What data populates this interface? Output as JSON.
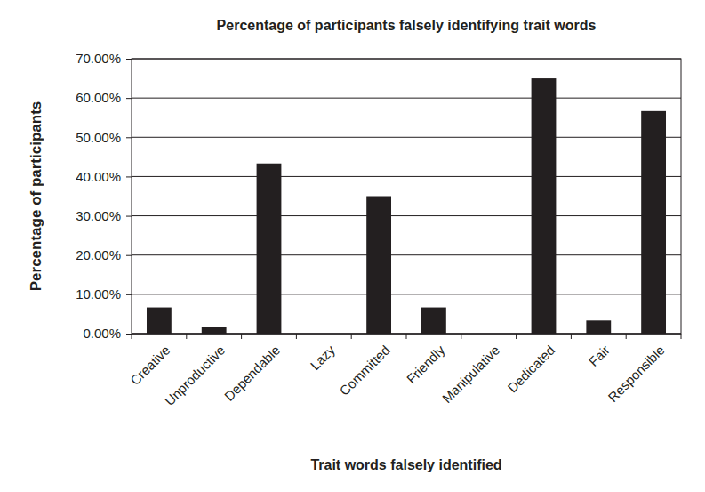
{
  "chart_data": {
    "type": "bar",
    "title": "Percentage of participants falsely identifying trait words",
    "x_label": "Trait words falsely identified",
    "y_label": "Percentage of participants",
    "categories": [
      "Creative",
      "Unproductive",
      "Dependable",
      "Lazy",
      "Committed",
      "Friendly",
      "Manipulative",
      "Dedicated",
      "Fair",
      "Responsible"
    ],
    "values": [
      6.67,
      1.67,
      43.33,
      0,
      35,
      6.67,
      0,
      65,
      3.33,
      56.67
    ],
    "color": "#231f20",
    "ylim": [
      0,
      70
    ],
    "yticks": [
      {
        "value": 0,
        "label": "0.00%"
      },
      {
        "value": 10,
        "label": "10.00%"
      },
      {
        "value": 20,
        "label": "20.00%"
      },
      {
        "value": 30,
        "label": "30.00%"
      },
      {
        "value": 40,
        "label": "40.00%"
      },
      {
        "value": 50,
        "label": "50.00%"
      },
      {
        "value": 60,
        "label": "60.00%"
      },
      {
        "value": 70,
        "label": "70.00%"
      }
    ],
    "grid": true
  }
}
